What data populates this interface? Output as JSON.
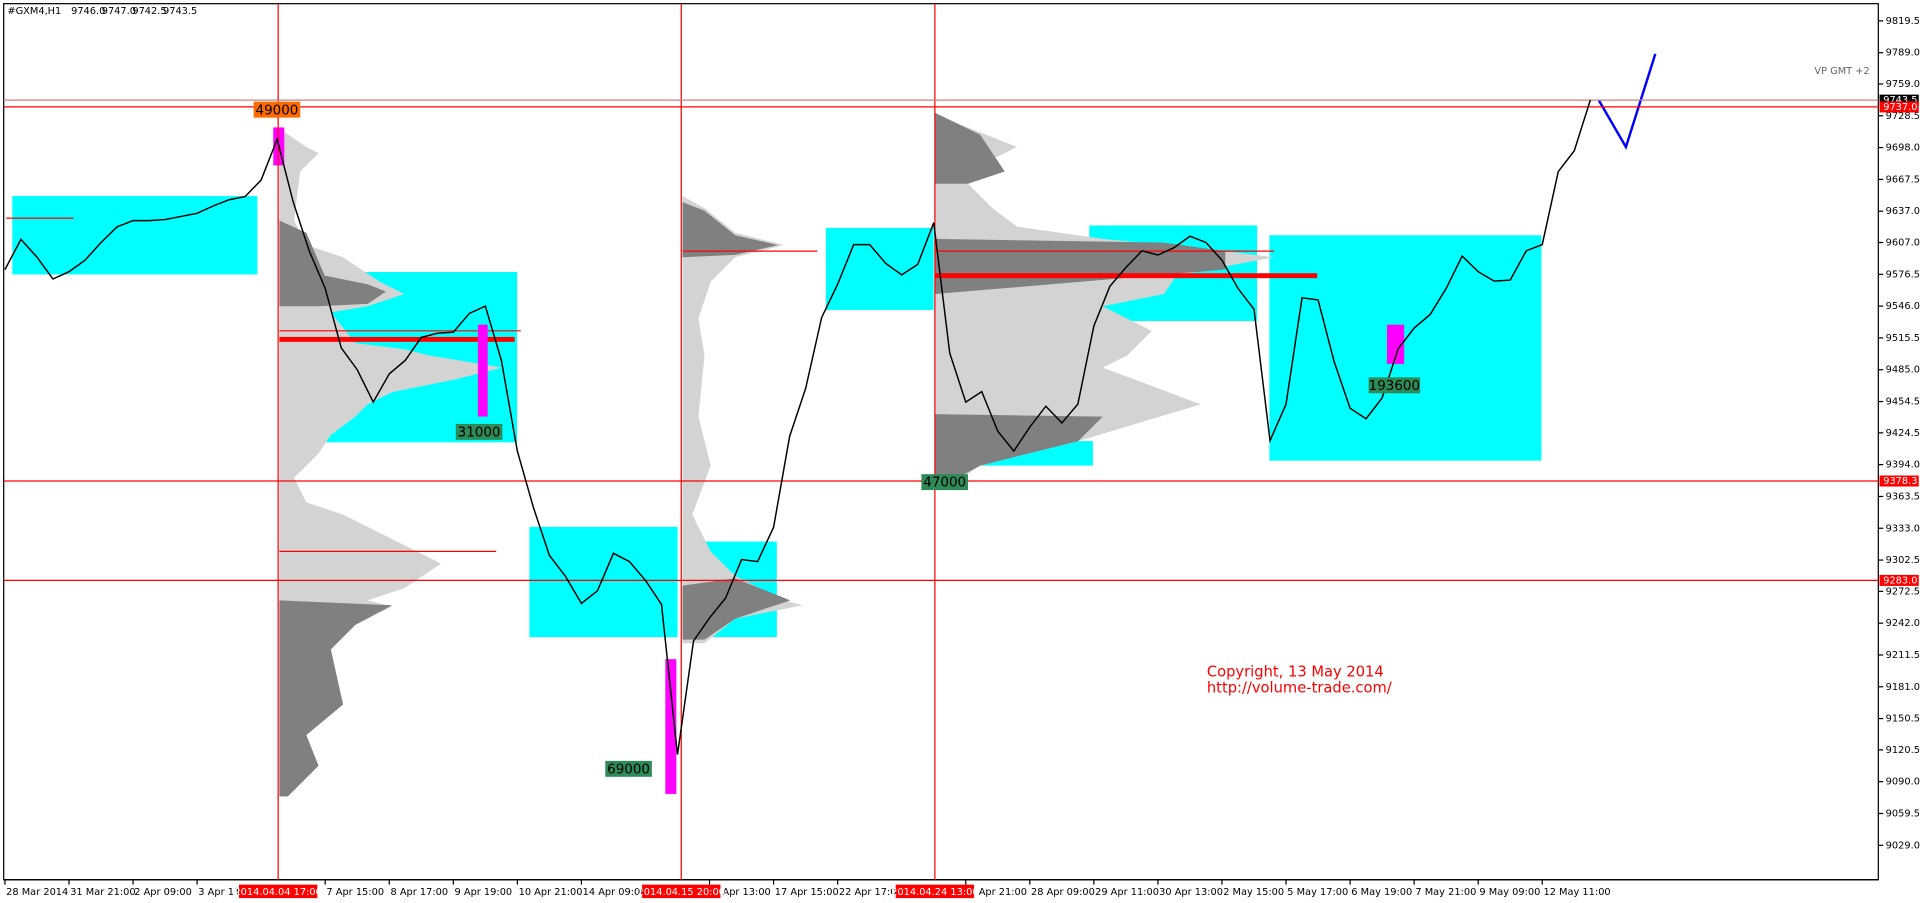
{
  "chart_data": {
    "type": "line",
    "title": "#GXM4,H1",
    "quote": [
      {
        "value": 9746,
        "label": "9746.0"
      },
      {
        "value": 9747,
        "label": "9747.0"
      },
      {
        "value": 9742.5,
        "label": "9742.5"
      },
      {
        "value": 9743.5,
        "label": "9743.5"
      }
    ],
    "indicator": "VP GMT +2",
    "copyright": "Copyright, 13 May 2014",
    "url": "http://volume-trade.com/",
    "categories": [
      "28 Mar 2014",
      null,
      null,
      null,
      "31 Mar 21:00",
      null,
      null,
      null,
      "2 Apr 09:00",
      null,
      null,
      null,
      "3 Apr 11:",
      null,
      null,
      null,
      null,
      null,
      null,
      null,
      "7 Apr 15:00",
      null,
      null,
      null,
      "8 Apr 17:00",
      null,
      null,
      null,
      "9 Apr 19:00",
      null,
      null,
      null,
      "10 Apr 21:00",
      null,
      null,
      null,
      "14 Apr 09:00",
      null,
      null,
      null,
      null,
      null,
      null,
      null,
      "Apr 13:00",
      null,
      null,
      null,
      "17 Apr 15:00",
      null,
      null,
      null,
      "22 Apr 17:00",
      null,
      null,
      null,
      null,
      null,
      null,
      null,
      "Apr 21:00",
      null,
      null,
      null,
      "28 Apr 09:00",
      null,
      null,
      null,
      "29 Apr 11:00",
      null,
      null,
      null,
      "30 Apr 13:00",
      null,
      null,
      null,
      "2 May 15:00",
      null,
      null,
      null,
      "5 May 17:00",
      null,
      null,
      null,
      "6 May 19:00",
      null,
      null,
      null,
      "7 May 21:00",
      null,
      null,
      null,
      "9 May 09:00",
      null,
      null,
      null,
      "12 May 11:00",
      null,
      null,
      null
    ],
    "series": [
      {
        "name": "GXM4",
        "color": "#000000",
        "values": [
          9581,
          9610,
          9593,
          9572,
          9579,
          9590,
          9607,
          9622,
          9628,
          9628,
          9629,
          9632,
          9635,
          9642,
          9648,
          9651,
          9667,
          9706,
          9646,
          9599,
          9563,
          9506,
          9485,
          9454,
          9481,
          9494,
          9516,
          9520,
          9521,
          9539,
          9546,
          9494,
          9407,
          9353,
          9307,
          9287,
          9261,
          9273,
          9309,
          9301,
          9283,
          9260,
          9116,
          9225,
          9247,
          9266,
          9303,
          9301,
          9334,
          9421,
          9467,
          9535,
          9567,
          9605,
          9605,
          9587,
          9576,
          9586,
          9626,
          9501,
          9454,
          9464,
          9426,
          9407,
          9430,
          9450,
          9434,
          9452,
          9527,
          9565,
          9583,
          9599,
          9595,
          9602,
          9613,
          9607,
          9590,
          9563,
          9543,
          9417,
          9452,
          9554,
          9552,
          9493,
          9448,
          9438,
          9458,
          9505,
          9525,
          9538,
          9563,
          9594,
          9579,
          9570,
          9571,
          9599,
          9605,
          9675,
          9695,
          9743.5
        ]
      }
    ],
    "time_markers": [
      "2014.04.04 17:00",
      "2014.04.15 20:00",
      "2014.04.24 13:00"
    ],
    "volume_labels": [
      49000,
      31000,
      69000,
      47000,
      193600
    ],
    "levels": [
      {
        "value": 9743.5,
        "label": "9743.5",
        "color": "#000000"
      },
      {
        "value": 9737,
        "label": "9737.0",
        "color": "#ff0000"
      },
      {
        "value": 9378.3,
        "label": "9378.3",
        "color": "#ff0000"
      },
      {
        "value": 9283,
        "label": "9283.0",
        "color": "#ff0000"
      }
    ],
    "ylim": [
      8996,
      9836
    ],
    "yticks": [
      {
        "value": 9819.5,
        "label": "9819.5"
      },
      {
        "value": 9789,
        "label": "9789.0"
      },
      {
        "value": 9759,
        "label": "9759.0"
      },
      {
        "value": 9728.5,
        "label": "9728.5"
      },
      {
        "value": 9698,
        "label": "9698.0"
      },
      {
        "value": 9667.5,
        "label": "9667.5"
      },
      {
        "value": 9637,
        "label": "9637.0"
      },
      {
        "value": 9607,
        "label": "9607.0"
      },
      {
        "value": 9576.5,
        "label": "9576.5"
      },
      {
        "value": 9546,
        "label": "9546.0"
      },
      {
        "value": 9515.5,
        "label": "9515.5"
      },
      {
        "value": 9485,
        "label": "9485.0"
      },
      {
        "value": 9454.5,
        "label": "9454.5"
      },
      {
        "value": 9424.5,
        "label": "9424.5"
      },
      {
        "value": 9394,
        "label": "9394.0"
      },
      {
        "value": 9363.5,
        "label": "9363.5"
      },
      {
        "value": 9333,
        "label": "9333.0"
      },
      {
        "value": 9302.5,
        "label": "9302.5"
      },
      {
        "value": 9272.5,
        "label": "9272.5"
      },
      {
        "value": 9242,
        "label": "9242.0"
      },
      {
        "value": 9211.5,
        "label": "9211.5"
      },
      {
        "value": 9181,
        "label": "9181.0"
      },
      {
        "value": 9150.5,
        "label": "9150.5"
      },
      {
        "value": 9120.5,
        "label": "9120.5"
      },
      {
        "value": 9090,
        "label": "9090.0"
      },
      {
        "value": 9059.5,
        "label": "9059.5"
      },
      {
        "value": 9029,
        "label": "9029.0"
      }
    ],
    "grid": false
  }
}
